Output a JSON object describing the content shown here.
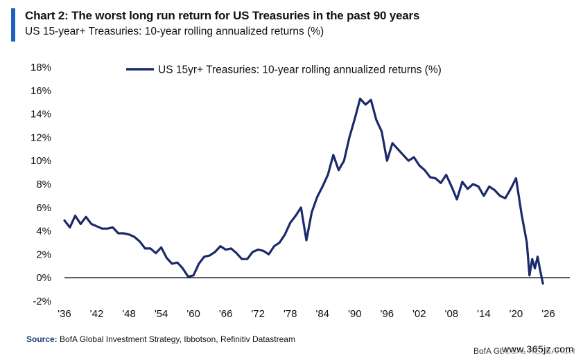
{
  "header": {
    "title": "Chart 2: The worst long run return for US Treasuries in the past 90 years",
    "subtitle": "US 15-year+ Treasuries: 10-year rolling annualized returns (%)"
  },
  "footer": {
    "source_label": "Source:",
    "source_text": "BofA Global Investment Strategy, Ibbotson, Refinitiv Datastream",
    "brand": "BofA GLOBAL RESEARCH",
    "watermark": "www.365jz.com"
  },
  "colors": {
    "accent": "#1f5fc0",
    "series": "#1b2a6b"
  },
  "chart_data": {
    "type": "line",
    "title": "Chart 2: The worst long run return for US Treasuries in the past 90 years",
    "subtitle": "US 15-year+ Treasuries: 10-year rolling annualized returns (%)",
    "xlabel": "",
    "ylabel": "",
    "xlim": [
      1936,
      2030
    ],
    "ylim": [
      -2,
      18
    ],
    "y_ticks": [
      -2,
      0,
      2,
      4,
      6,
      8,
      10,
      12,
      14,
      16,
      18
    ],
    "y_tick_labels": [
      "-2%",
      "0%",
      "2%",
      "4%",
      "6%",
      "8%",
      "10%",
      "12%",
      "14%",
      "16%",
      "18%"
    ],
    "x_ticks": [
      1936,
      1942,
      1948,
      1954,
      1960,
      1966,
      1972,
      1978,
      1984,
      1990,
      1996,
      2002,
      2008,
      2014,
      2020,
      2026
    ],
    "x_tick_labels": [
      "'36",
      "'42",
      "'48",
      "'54",
      "'60",
      "'66",
      "'72",
      "'78",
      "'84",
      "'90",
      "'96",
      "'02",
      "'08",
      "'14",
      "'20",
      "'26"
    ],
    "grid": false,
    "zero_line": true,
    "legend_position": "top",
    "series": [
      {
        "name": "US 15yr+ Treasuries: 10-year rolling annualized returns (%)",
        "x": [
          1936,
          1937,
          1938,
          1939,
          1940,
          1941,
          1942,
          1943,
          1944,
          1945,
          1946,
          1947,
          1948,
          1949,
          1950,
          1951,
          1952,
          1953,
          1954,
          1955,
          1956,
          1957,
          1958,
          1959,
          1960,
          1961,
          1962,
          1963,
          1964,
          1965,
          1966,
          1967,
          1968,
          1969,
          1970,
          1971,
          1972,
          1973,
          1974,
          1975,
          1976,
          1977,
          1978,
          1979,
          1980,
          1981,
          1982,
          1983,
          1984,
          1985,
          1986,
          1987,
          1988,
          1989,
          1990,
          1991,
          1992,
          1993,
          1994,
          1995,
          1996,
          1997,
          1998,
          1999,
          2000,
          2001,
          2002,
          2003,
          2004,
          2005,
          2006,
          2007,
          2008,
          2009,
          2010,
          2011,
          2012,
          2013,
          2014,
          2015,
          2016,
          2017,
          2018,
          2019,
          2020,
          2021,
          2022,
          2022.5,
          2023,
          2023.5,
          2024,
          2024.5,
          2025
        ],
        "values": [
          4.9,
          4.3,
          5.3,
          4.6,
          5.2,
          4.6,
          4.4,
          4.2,
          4.2,
          4.3,
          3.8,
          3.8,
          3.7,
          3.5,
          3.1,
          2.5,
          2.5,
          2.1,
          2.6,
          1.7,
          1.2,
          1.3,
          0.8,
          0.1,
          0.2,
          1.2,
          1.8,
          1.9,
          2.2,
          2.7,
          2.4,
          2.5,
          2.1,
          1.6,
          1.6,
          2.2,
          2.4,
          2.3,
          2.0,
          2.7,
          3.0,
          3.7,
          4.7,
          5.3,
          6.0,
          3.2,
          5.6,
          6.9,
          7.8,
          8.8,
          10.5,
          9.2,
          10.0,
          12.0,
          13.6,
          15.3,
          14.8,
          15.2,
          13.5,
          12.5,
          10.0,
          11.5,
          11.0,
          10.5,
          10.0,
          10.3,
          9.6,
          9.2,
          8.6,
          8.5,
          8.1,
          8.8,
          7.8,
          6.7,
          8.2,
          7.6,
          8.0,
          7.8,
          7.0,
          7.8,
          7.5,
          7.0,
          6.8,
          7.6,
          8.5,
          5.5,
          3.0,
          0.2,
          1.6,
          0.8,
          1.8,
          0.6,
          -0.5
        ]
      }
    ]
  }
}
